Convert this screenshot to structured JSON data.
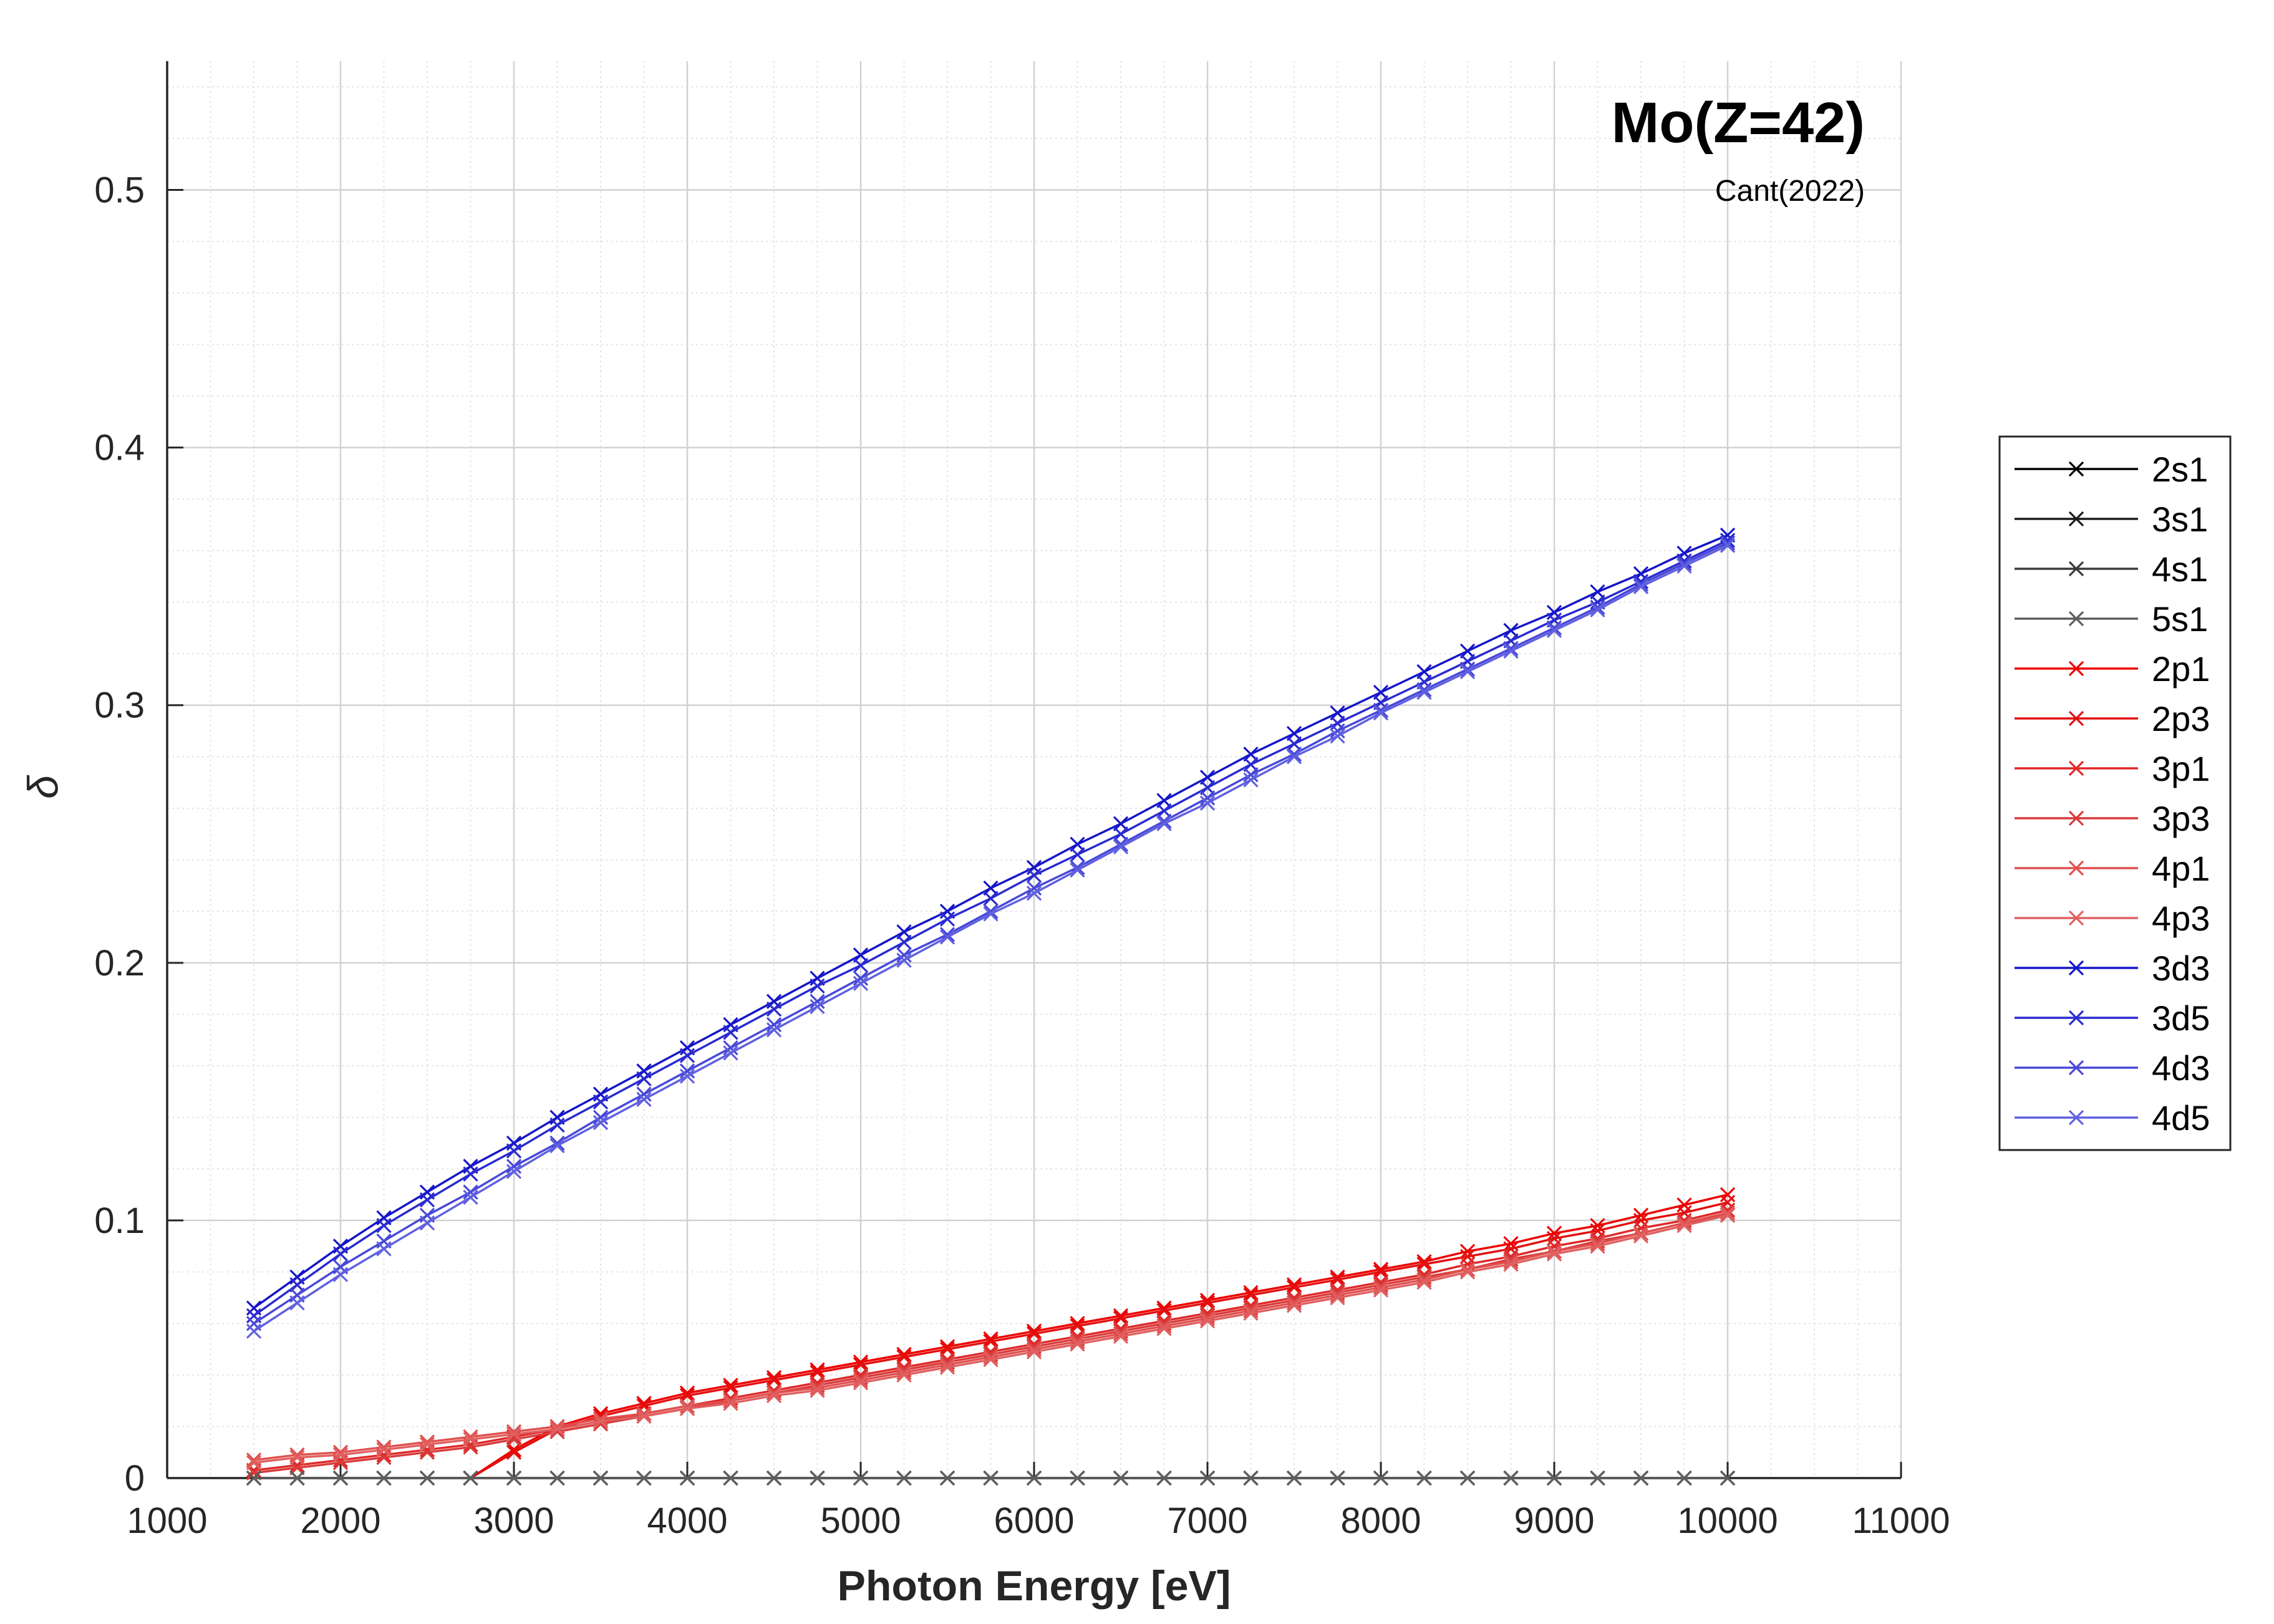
{
  "chart_data": {
    "type": "line",
    "title": "Mo(Z=42)",
    "subtitle": "Cant(2022)",
    "xlabel": "Photon Energy [eV]",
    "ylabel": "δ",
    "xlim": [
      1000,
      11000
    ],
    "ylim": [
      0,
      0.55
    ],
    "xticks": [
      1000,
      2000,
      3000,
      4000,
      5000,
      6000,
      7000,
      8000,
      9000,
      10000,
      11000
    ],
    "yticks": [
      0,
      0.1,
      0.2,
      0.3,
      0.4,
      0.5
    ],
    "xtick_labels": [
      "1000",
      "2000",
      "3000",
      "4000",
      "5000",
      "6000",
      "7000",
      "8000",
      "9000",
      "10000",
      "11000"
    ],
    "ytick_labels": [
      "0",
      "0.1",
      "0.2",
      "0.3",
      "0.4",
      "0.5"
    ],
    "grid": true,
    "minor_grid": true,
    "marker": "x",
    "legend_position": "outside-right",
    "x": [
      1500,
      1750,
      2000,
      2250,
      2500,
      2750,
      3000,
      3250,
      3500,
      3750,
      4000,
      4250,
      4500,
      4750,
      5000,
      5250,
      5500,
      5750,
      6000,
      6250,
      6500,
      6750,
      7000,
      7250,
      7500,
      7750,
      8000,
      8250,
      8500,
      8750,
      9000,
      9250,
      9500,
      9750,
      10000
    ],
    "series": [
      {
        "name": "2s1",
        "color": "#000000",
        "values": [
          0,
          0,
          0,
          0,
          0,
          0,
          0,
          0,
          0,
          0,
          0,
          0,
          0,
          0,
          0,
          0,
          0,
          0,
          0,
          0,
          0,
          0,
          0,
          0,
          0,
          0,
          0,
          0,
          0,
          0,
          0,
          0,
          0,
          0,
          0
        ]
      },
      {
        "name": "3s1",
        "color": "#1c1c1c",
        "values": [
          0,
          0,
          0,
          0,
          0,
          0,
          0,
          0,
          0,
          0,
          0,
          0,
          0,
          0,
          0,
          0,
          0,
          0,
          0,
          0,
          0,
          0,
          0,
          0,
          0,
          0,
          0,
          0,
          0,
          0,
          0,
          0,
          0,
          0,
          0
        ]
      },
      {
        "name": "4s1",
        "color": "#3a3a3a",
        "values": [
          0,
          0,
          0,
          0,
          0,
          0,
          0,
          0,
          0,
          0,
          0,
          0,
          0,
          0,
          0,
          0,
          0,
          0,
          0,
          0,
          0,
          0,
          0,
          0,
          0,
          0,
          0,
          0,
          0,
          0,
          0,
          0,
          0,
          0,
          0
        ]
      },
      {
        "name": "5s1",
        "color": "#5e5e5e",
        "values": [
          0,
          0,
          0,
          0,
          0,
          0,
          0,
          0,
          0,
          0,
          0,
          0,
          0,
          0,
          0,
          0,
          0,
          0,
          0,
          0,
          0,
          0,
          0,
          0,
          0,
          0,
          0,
          0,
          0,
          0,
          0,
          0,
          0,
          0,
          0
        ]
      },
      {
        "name": "2p1",
        "color": "#ee0000",
        "values": [
          null,
          null,
          null,
          null,
          null,
          0,
          0.011,
          0.02,
          0.025,
          0.029,
          0.033,
          0.036,
          0.039,
          0.042,
          0.045,
          0.048,
          0.051,
          0.054,
          0.057,
          0.06,
          0.063,
          0.066,
          0.069,
          0.072,
          0.075,
          0.078,
          0.081,
          0.084,
          0.088,
          0.091,
          0.095,
          0.098,
          0.102,
          0.106,
          0.11
        ]
      },
      {
        "name": "2p3",
        "color": "#e31010",
        "values": [
          null,
          null,
          null,
          null,
          null,
          0,
          0.01,
          0.019,
          0.024,
          0.028,
          0.032,
          0.035,
          0.038,
          0.041,
          0.044,
          0.047,
          0.05,
          0.053,
          0.056,
          0.059,
          0.062,
          0.065,
          0.068,
          0.071,
          0.074,
          0.077,
          0.08,
          0.083,
          0.086,
          0.089,
          0.093,
          0.096,
          0.1,
          0.103,
          0.107
        ]
      },
      {
        "name": "3p1",
        "color": "#e02828",
        "values": [
          0.003,
          0.005,
          0.007,
          0.009,
          0.011,
          0.013,
          0.016,
          0.019,
          0.022,
          0.025,
          0.028,
          0.031,
          0.034,
          0.037,
          0.04,
          0.043,
          0.046,
          0.049,
          0.052,
          0.055,
          0.058,
          0.061,
          0.064,
          0.067,
          0.07,
          0.073,
          0.076,
          0.079,
          0.083,
          0.086,
          0.09,
          0.093,
          0.097,
          0.1,
          0.104
        ]
      },
      {
        "name": "3p3",
        "color": "#d83a3a",
        "values": [
          0.002,
          0.004,
          0.006,
          0.008,
          0.01,
          0.012,
          0.015,
          0.018,
          0.021,
          0.024,
          0.027,
          0.03,
          0.033,
          0.036,
          0.039,
          0.042,
          0.045,
          0.048,
          0.051,
          0.054,
          0.057,
          0.06,
          0.063,
          0.066,
          0.069,
          0.072,
          0.075,
          0.078,
          0.081,
          0.085,
          0.088,
          0.092,
          0.095,
          0.099,
          0.102
        ]
      },
      {
        "name": "4p1",
        "color": "#e05050",
        "values": [
          0.007,
          0.009,
          0.01,
          0.012,
          0.014,
          0.016,
          0.018,
          0.02,
          0.023,
          0.025,
          0.028,
          0.03,
          0.033,
          0.035,
          0.038,
          0.041,
          0.044,
          0.047,
          0.05,
          0.053,
          0.056,
          0.059,
          0.062,
          0.065,
          0.068,
          0.071,
          0.074,
          0.077,
          0.081,
          0.084,
          0.088,
          0.091,
          0.095,
          0.099,
          0.103
        ]
      },
      {
        "name": "4p3",
        "color": "#e06060",
        "values": [
          0.006,
          0.008,
          0.009,
          0.011,
          0.013,
          0.015,
          0.017,
          0.019,
          0.022,
          0.024,
          0.027,
          0.029,
          0.032,
          0.034,
          0.037,
          0.04,
          0.043,
          0.046,
          0.049,
          0.052,
          0.055,
          0.058,
          0.061,
          0.064,
          0.067,
          0.07,
          0.073,
          0.076,
          0.08,
          0.083,
          0.087,
          0.09,
          0.094,
          0.098,
          0.102
        ]
      },
      {
        "name": "3d3",
        "color": "#1515c8",
        "values": [
          0.066,
          0.078,
          0.09,
          0.101,
          0.111,
          0.121,
          0.13,
          0.14,
          0.149,
          0.158,
          0.167,
          0.176,
          0.185,
          0.194,
          0.203,
          0.212,
          0.22,
          0.229,
          0.237,
          0.246,
          0.254,
          0.263,
          0.272,
          0.281,
          0.289,
          0.297,
          0.305,
          0.313,
          0.321,
          0.329,
          0.336,
          0.344,
          0.351,
          0.359,
          0.366
        ]
      },
      {
        "name": "3d5",
        "color": "#2a2ad0",
        "values": [
          0.063,
          0.075,
          0.087,
          0.098,
          0.108,
          0.118,
          0.127,
          0.137,
          0.146,
          0.155,
          0.164,
          0.173,
          0.182,
          0.191,
          0.199,
          0.208,
          0.217,
          0.225,
          0.234,
          0.242,
          0.25,
          0.259,
          0.268,
          0.277,
          0.285,
          0.293,
          0.301,
          0.309,
          0.317,
          0.325,
          0.333,
          0.34,
          0.348,
          0.356,
          0.364
        ]
      },
      {
        "name": "4d3",
        "color": "#4848d8",
        "values": [
          0.06,
          0.071,
          0.082,
          0.092,
          0.102,
          0.111,
          0.121,
          0.13,
          0.14,
          0.149,
          0.158,
          0.167,
          0.176,
          0.185,
          0.194,
          0.203,
          0.211,
          0.22,
          0.229,
          0.237,
          0.246,
          0.255,
          0.264,
          0.273,
          0.281,
          0.29,
          0.298,
          0.306,
          0.314,
          0.322,
          0.33,
          0.338,
          0.347,
          0.355,
          0.363
        ]
      },
      {
        "name": "4d5",
        "color": "#6060e0",
        "values": [
          0.057,
          0.068,
          0.079,
          0.089,
          0.099,
          0.109,
          0.119,
          0.129,
          0.138,
          0.147,
          0.156,
          0.165,
          0.174,
          0.183,
          0.192,
          0.201,
          0.21,
          0.219,
          0.227,
          0.236,
          0.245,
          0.254,
          0.262,
          0.271,
          0.28,
          0.288,
          0.297,
          0.305,
          0.313,
          0.321,
          0.329,
          0.337,
          0.346,
          0.354,
          0.362
        ]
      }
    ]
  }
}
